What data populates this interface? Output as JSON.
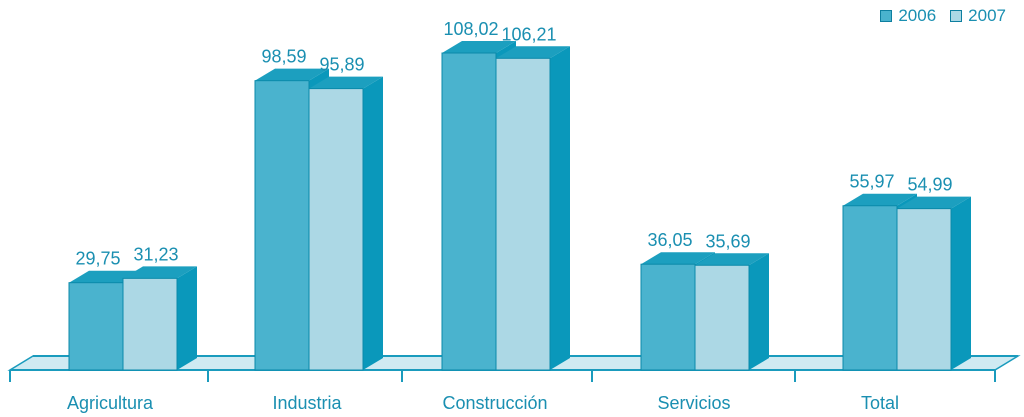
{
  "chart_data": {
    "type": "bar",
    "categories": [
      "Agricultura",
      "Industria",
      "Construcción",
      "Servicios",
      "Total"
    ],
    "series": [
      {
        "name": "2006",
        "values": [
          29.75,
          98.59,
          108.02,
          36.05,
          55.97
        ],
        "labels": [
          "29,75",
          "98,59",
          "108,02",
          "36,05",
          "55,97"
        ]
      },
      {
        "name": "2007",
        "values": [
          31.23,
          95.89,
          106.21,
          35.69,
          54.99
        ],
        "labels": [
          "31,23",
          "95,89",
          "106,21",
          "35,69",
          "54,99"
        ]
      }
    ],
    "ylim": [
      0,
      110
    ],
    "legend_position": "top-right",
    "grid": false,
    "three_d": true
  },
  "colors": {
    "series_2006_front": "#4ab3ce",
    "series_2007_front": "#acd8e5",
    "bar_side": "#0a98bb",
    "bar_top": "#1c9fbf",
    "floor": "#cfeaf2",
    "floor_line": "#1a9bbd",
    "text": "#1a8fb1"
  }
}
